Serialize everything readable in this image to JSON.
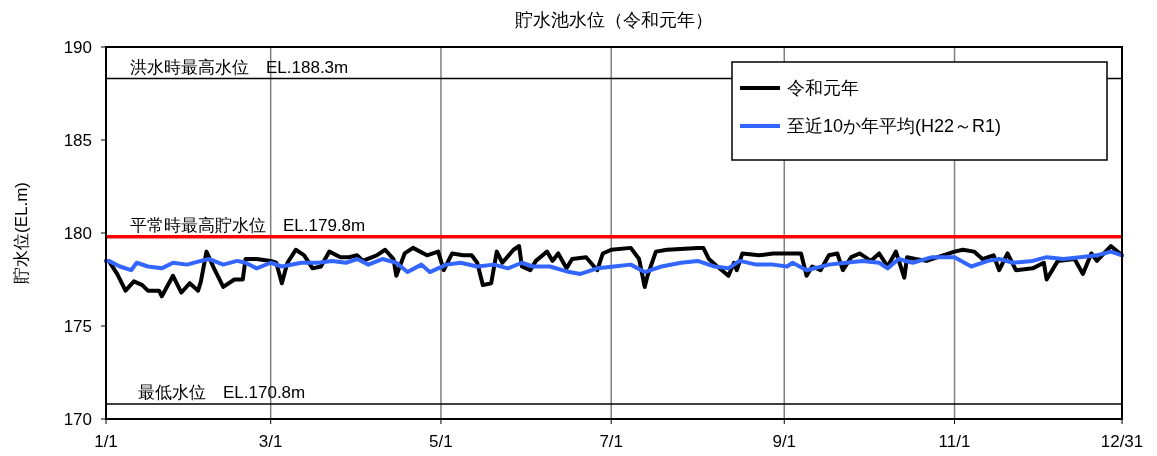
{
  "chart_data": {
    "type": "line",
    "title": "貯水池水位（令和元年）",
    "ylabel": "貯水位(EL.m)",
    "xlim": [
      "--01-01",
      "--12-31"
    ],
    "xticks": [
      {
        "value": "--01-01",
        "label": "1/1"
      },
      {
        "value": "--03-01",
        "label": "3/1"
      },
      {
        "value": "--05-01",
        "label": "5/1"
      },
      {
        "value": "--07-01",
        "label": "7/1"
      },
      {
        "value": "--09-01",
        "label": "9/1"
      },
      {
        "value": "--11-01",
        "label": "11/1"
      },
      {
        "value": "--12-31",
        "label": "12/31"
      }
    ],
    "ylim": [
      170,
      190
    ],
    "yticks": [
      170,
      175,
      180,
      185,
      190
    ],
    "grid": "x",
    "legend": "top right",
    "line_style": "solid",
    "marker": "none",
    "ref_lines": [
      {
        "axis": "y",
        "value": 188.3,
        "label": "洪水時最高水位　EL.188.3m",
        "color": "#000000"
      },
      {
        "axis": "y",
        "value": 179.8,
        "label": "平常時最高貯水位　EL.179.8m",
        "color": "#ff0000"
      },
      {
        "axis": "y",
        "value": 170.8,
        "label": "最低水位　EL.170.8m",
        "color": "#000000"
      }
    ],
    "series": [
      {
        "name": "令和元年",
        "color": "#000000",
        "x": [
          "--01-01",
          "--01-02",
          "--01-05",
          "--01-08",
          "--01-11",
          "--01-14",
          "--01-16",
          "--01-20",
          "--01-21",
          "--01-25",
          "--01-28",
          "--01-31",
          "--02-03",
          "--02-04",
          "--02-06",
          "--02-09",
          "--02-12",
          "--02-16",
          "--02-19",
          "--02-20",
          "--02-24",
          "--03-01",
          "--03-03",
          "--03-05",
          "--03-07",
          "--03-10",
          "--03-13",
          "--03-16",
          "--03-19",
          "--03-22",
          "--03-26",
          "--03-29",
          "--04-01",
          "--04-03",
          "--04-08",
          "--04-11",
          "--04-14",
          "--04-15",
          "--04-18",
          "--04-21",
          "--04-26",
          "--04-30",
          "--05-02",
          "--05-05",
          "--05-09",
          "--05-12",
          "--05-14",
          "--05-16",
          "--05-19",
          "--05-21",
          "--05-23",
          "--05-27",
          "--05-29",
          "--05-30",
          "--06-02",
          "--06-04",
          "--06-08",
          "--06-10",
          "--06-12",
          "--06-15",
          "--06-17",
          "--06-22",
          "--06-26",
          "--06-28",
          "--07-01",
          "--07-08",
          "--07-11",
          "--07-13",
          "--07-14",
          "--07-17",
          "--07-21",
          "--08-01",
          "--08-03",
          "--08-05",
          "--08-08",
          "--08-12",
          "--08-14",
          "--08-15",
          "--08-17",
          "--08-23",
          "--08-28",
          "--09-06",
          "--09-07",
          "--09-09",
          "--09-11",
          "--09-14",
          "--09-17",
          "--09-20",
          "--09-22",
          "--09-25",
          "--09-28",
          "--10-02",
          "--10-05",
          "--10-08",
          "--10-11",
          "--10-14",
          "--10-15",
          "--10-18",
          "--10-22",
          "--10-26",
          "--11-01",
          "--11-04",
          "--11-08",
          "--11-11",
          "--11-15",
          "--11-17",
          "--11-20",
          "--11-23",
          "--11-29",
          "--12-03",
          "--12-04",
          "--12-08",
          "--12-14",
          "--12-17",
          "--12-20",
          "--12-22",
          "--12-27",
          "--12-31"
        ],
        "values": [
          178.5,
          178.5,
          177.8,
          176.9,
          177.4,
          177.2,
          176.9,
          176.9,
          176.6,
          177.7,
          176.8,
          177.3,
          176.9,
          177.4,
          179.0,
          178.0,
          177.1,
          177.5,
          177.5,
          178.6,
          178.6,
          178.5,
          178.4,
          177.3,
          178.4,
          179.1,
          178.8,
          178.1,
          178.2,
          179.0,
          178.7,
          178.7,
          178.8,
          178.5,
          178.8,
          179.1,
          178.6,
          177.7,
          178.9,
          179.2,
          178.8,
          179.0,
          178.0,
          178.9,
          178.8,
          178.8,
          178.4,
          177.2,
          177.3,
          179.0,
          178.4,
          179.1,
          179.3,
          178.2,
          178.0,
          178.5,
          179.0,
          178.5,
          178.9,
          178.1,
          178.6,
          178.7,
          178.0,
          178.9,
          179.1,
          179.2,
          178.6,
          177.1,
          177.7,
          179.0,
          179.1,
          179.2,
          179.2,
          178.6,
          178.2,
          177.7,
          178.4,
          178.0,
          178.9,
          178.8,
          178.9,
          178.9,
          178.9,
          177.7,
          178.2,
          178.0,
          178.8,
          178.9,
          178.0,
          178.7,
          178.9,
          178.5,
          178.9,
          178.2,
          179.0,
          177.6,
          178.7,
          178.6,
          178.5,
          178.7,
          179.0,
          179.1,
          179.0,
          178.6,
          178.8,
          178.0,
          178.9,
          178.0,
          178.1,
          178.4,
          177.5,
          178.5,
          178.6,
          177.8,
          178.9,
          178.5,
          179.3,
          178.8
        ]
      },
      {
        "name": "至近10か年平均(H22～R1)",
        "color": "#3366ff",
        "x": [
          "--01-01",
          "--01-02",
          "--01-06",
          "--01-10",
          "--01-12",
          "--01-16",
          "--01-21",
          "--01-25",
          "--01-30",
          "--02-04",
          "--02-07",
          "--02-12",
          "--02-17",
          "--02-20",
          "--02-24",
          "--03-01",
          "--03-05",
          "--03-12",
          "--03-18",
          "--03-23",
          "--03-28",
          "--04-01",
          "--04-05",
          "--04-10",
          "--04-15",
          "--04-19",
          "--04-24",
          "--04-27",
          "--05-03",
          "--05-08",
          "--05-14",
          "--05-20",
          "--05-25",
          "--05-30",
          "--06-03",
          "--06-09",
          "--06-16",
          "--06-20",
          "--06-26",
          "--07-02",
          "--07-08",
          "--07-13",
          "--07-19",
          "--07-26",
          "--08-01",
          "--08-07",
          "--08-12",
          "--08-16",
          "--08-22",
          "--08-28",
          "--09-02",
          "--09-04",
          "--09-09",
          "--09-17",
          "--09-23",
          "--09-29",
          "--10-05",
          "--10-08",
          "--10-12",
          "--10-17",
          "--10-24",
          "--11-01",
          "--11-07",
          "--11-13",
          "--11-17",
          "--11-22",
          "--11-29",
          "--12-04",
          "--12-10",
          "--12-16",
          "--12-22",
          "--12-27",
          "--12-31"
        ],
        "values": [
          178.5,
          178.5,
          178.2,
          178.0,
          178.4,
          178.2,
          178.1,
          178.4,
          178.3,
          178.5,
          178.6,
          178.3,
          178.5,
          178.4,
          178.1,
          178.4,
          178.2,
          178.4,
          178.4,
          178.5,
          178.4,
          178.6,
          178.3,
          178.6,
          178.4,
          177.9,
          178.3,
          177.9,
          178.3,
          178.4,
          178.2,
          178.3,
          178.1,
          178.4,
          178.2,
          178.2,
          177.9,
          177.8,
          178.1,
          178.2,
          178.3,
          177.9,
          178.2,
          178.4,
          178.5,
          178.2,
          178.1,
          178.5,
          178.3,
          178.3,
          178.2,
          178.4,
          178.0,
          178.3,
          178.4,
          178.5,
          178.4,
          178.1,
          178.6,
          178.4,
          178.7,
          178.7,
          178.2,
          178.5,
          178.6,
          178.4,
          178.5,
          178.7,
          178.6,
          178.7,
          178.8,
          179.0,
          178.8
        ]
      }
    ]
  }
}
